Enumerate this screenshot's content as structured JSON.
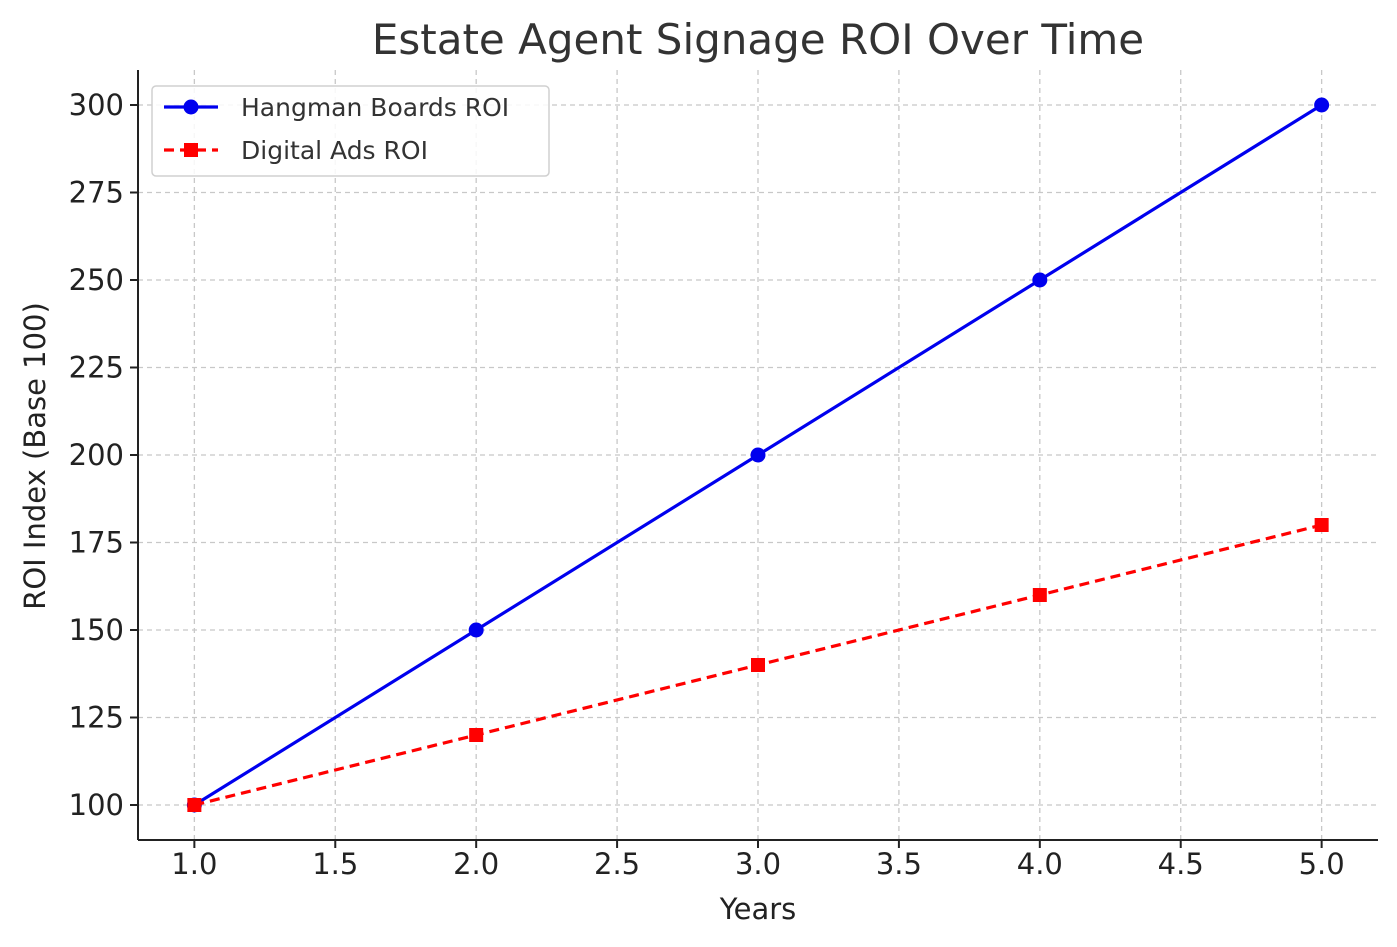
{
  "chart_data": {
    "type": "line",
    "title": "Estate Agent Signage ROI Over Time",
    "xlabel": "Years",
    "ylabel": "ROI Index (Base 100)",
    "x": [
      1,
      2,
      3,
      4,
      5
    ],
    "xlim": [
      0.8,
      5.2
    ],
    "ylim": [
      90,
      310
    ],
    "xticks": [
      1.0,
      1.5,
      2.0,
      2.5,
      3.0,
      3.5,
      4.0,
      4.5,
      5.0
    ],
    "yticks": [
      100,
      125,
      150,
      175,
      200,
      225,
      250,
      275,
      300
    ],
    "xtick_labels": [
      "1.0",
      "1.5",
      "2.0",
      "2.5",
      "3.0",
      "3.5",
      "4.0",
      "4.5",
      "5.0"
    ],
    "ytick_labels": [
      "100",
      "125",
      "150",
      "175",
      "200",
      "225",
      "250",
      "275",
      "300"
    ],
    "grid": true,
    "legend_position": "top-left",
    "series": [
      {
        "name": "Hangman Boards ROI",
        "values": [
          100,
          150,
          200,
          250,
          300
        ],
        "color": "#0000ee",
        "line_style": "solid",
        "marker": "circle"
      },
      {
        "name": "Digital Ads ROI",
        "values": [
          100,
          120,
          140,
          160,
          180
        ],
        "color": "#ff0000",
        "line_style": "dashed",
        "marker": "square"
      }
    ]
  }
}
